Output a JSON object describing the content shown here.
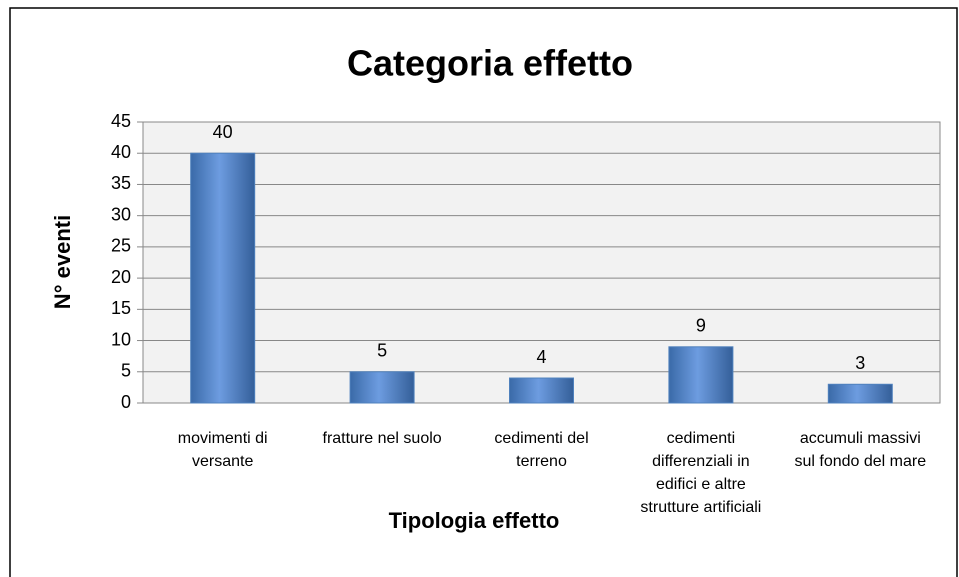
{
  "chart_data": {
    "type": "bar",
    "title": "Categoria effetto",
    "xlabel": "Tipologia effetto",
    "ylabel": "N° eventi",
    "categories": [
      "movimenti di versante",
      "fratture nel suolo",
      "cedimenti del terreno",
      "cedimenti differenziali in edifici e altre strutture artificiali",
      "accumuli massivi sul fondo del mare"
    ],
    "values": [
      40,
      5,
      4,
      9,
      3
    ],
    "color": "#4f81bd",
    "ylim": [
      0,
      45
    ],
    "yticks": [
      0,
      5,
      10,
      15,
      20,
      25,
      30,
      35,
      40,
      45
    ],
    "grid": true
  }
}
